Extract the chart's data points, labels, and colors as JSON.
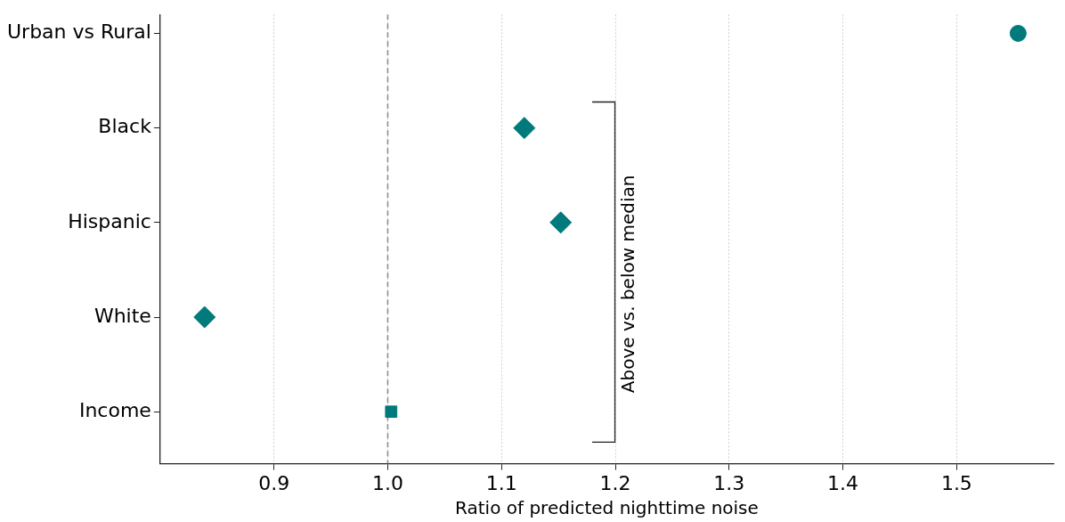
{
  "chart_data": {
    "type": "scatter",
    "orientation": "horizontal",
    "xlabel": "Ratio of predicted nighttime noise",
    "categories": [
      "Urban vs Rural",
      "Black",
      "Hispanic",
      "White",
      "Income"
    ],
    "xlim": [
      0.8,
      1.585
    ],
    "xticks": [
      0.9,
      {
        "value": 1.0,
        "label": "1.0"
      },
      1.1,
      1.2,
      1.3,
      1.4,
      1.5
    ],
    "series": [
      {
        "color": "#007a7a",
        "marker": "circle",
        "values": [
          1.554,
          null,
          null,
          null,
          null
        ]
      },
      {
        "color": "#007a7a",
        "marker": "diamond",
        "values": [
          null,
          1.12,
          1.152,
          0.839,
          null
        ]
      },
      {
        "color": "#007a7a",
        "marker": "square",
        "values": [
          null,
          null,
          null,
          null,
          1.003
        ]
      }
    ],
    "ref_lines": [
      {
        "axis": "x",
        "value": 1.0,
        "color": "#888888",
        "line_style": "dashed"
      }
    ],
    "annotations": [
      "Above vs. below median"
    ],
    "grid": "x",
    "legend": false
  }
}
